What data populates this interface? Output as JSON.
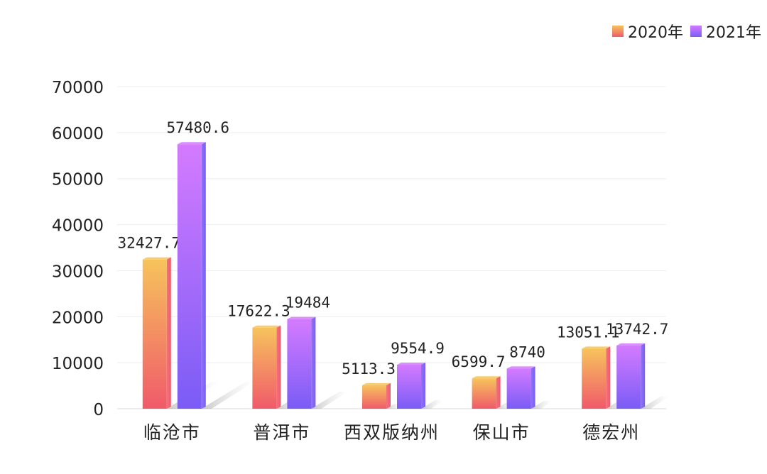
{
  "chart_data": {
    "type": "bar",
    "categories": [
      "临沧市",
      "普洱市",
      "西双版纳州",
      "保山市",
      "德宏州"
    ],
    "series": [
      {
        "name": "2020年",
        "values": [
          32427.7,
          17622.3,
          5113.3,
          6599.7,
          13051.1
        ],
        "labels": [
          "32427.7",
          "17622.3",
          "5113.3",
          "6599.7",
          "13051.1"
        ],
        "color_top": "#f6c35c",
        "color_bottom": "#f05a6a"
      },
      {
        "name": "2021年",
        "values": [
          57480.6,
          19484,
          9554.9,
          8740,
          13742.7
        ],
        "labels": [
          "57480.6",
          "19484",
          "9554.9",
          "8740",
          "13742.7"
        ],
        "color_top": "#d47bff",
        "color_bottom": "#7a5cf5"
      }
    ],
    "yticks": [
      "0",
      "10000",
      "20000",
      "30000",
      "40000",
      "50000",
      "60000",
      "70000"
    ],
    "ylim": [
      0,
      70000
    ],
    "grid": true,
    "legend_position": "top-right"
  }
}
